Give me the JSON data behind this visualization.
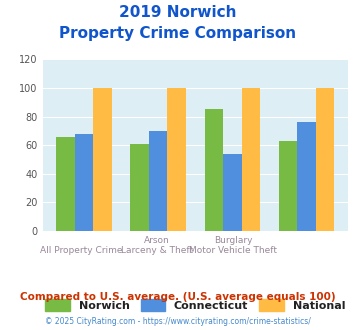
{
  "title_line1": "2019 Norwich",
  "title_line2": "Property Crime Comparison",
  "norwich": [
    66,
    61,
    85,
    63
  ],
  "connecticut": [
    68,
    70,
    54,
    76
  ],
  "national": [
    100,
    100,
    100,
    100
  ],
  "norwich_color": "#77bb44",
  "connecticut_color": "#4f8fdd",
  "national_color": "#ffbb44",
  "ylim": [
    0,
    120
  ],
  "yticks": [
    0,
    20,
    40,
    60,
    80,
    100,
    120
  ],
  "bg_color": "#ddeef5",
  "title_color": "#1155cc",
  "top_labels": [
    "",
    "Arson",
    "Burglary",
    ""
  ],
  "bottom_labels": [
    "All Property Crime",
    "Larceny & Theft",
    "Motor Vehicle Theft",
    ""
  ],
  "xlabel_color": "#998899",
  "legend_labels": [
    "Norwich",
    "Connecticut",
    "National"
  ],
  "legend_text_color": "#222222",
  "footer_text": "Compared to U.S. average. (U.S. average equals 100)",
  "copyright_text": "© 2025 CityRating.com - https://www.cityrating.com/crime-statistics/",
  "footer_color": "#cc3300",
  "copyright_color": "#4488cc",
  "grid_color": "#ffffff",
  "ytick_color": "#555555"
}
